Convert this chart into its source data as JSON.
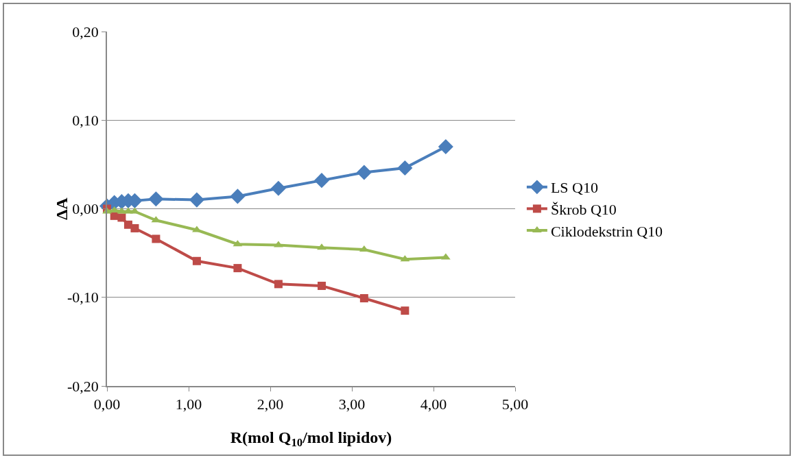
{
  "chart_data": {
    "type": "line",
    "xlabel": "R(mol Q$_{10}$/mol lipidov)",
    "ylabel": "ΔA",
    "x": [
      0,
      0.09,
      0.18,
      0.26,
      0.34,
      0.6,
      1.1,
      1.6,
      2.1,
      2.63,
      3.15,
      3.65,
      4.15
    ],
    "series": [
      {
        "name": "LS Q10",
        "color": "#4a7ebb",
        "marker": "diamond",
        "values": [
          0.003,
          0.007,
          0.008,
          0.009,
          0.009,
          0.011,
          0.01,
          0.014,
          0.023,
          0.032,
          0.041,
          0.046,
          0.07
        ]
      },
      {
        "name": "Škrob Q10",
        "color": "#be4b48",
        "marker": "square",
        "values": [
          0,
          -0.008,
          -0.01,
          -0.018,
          -0.022,
          -0.034,
          -0.059,
          -0.067,
          -0.085,
          -0.087,
          -0.101,
          -0.115,
          null
        ]
      },
      {
        "name": "Ciklodekstrin Q10",
        "color": "#98b954",
        "marker": "triangle",
        "values": [
          -0.003,
          -0.002,
          -0.003,
          -0.003,
          -0.003,
          -0.013,
          -0.024,
          -0.04,
          -0.041,
          -0.044,
          -0.046,
          -0.057,
          -0.055
        ]
      }
    ],
    "xlim": [
      0,
      5
    ],
    "xticks": [
      {
        "value": 0,
        "label": "0,00"
      },
      {
        "value": 1,
        "label": "1,00"
      },
      {
        "value": 2,
        "label": "2,00"
      },
      {
        "value": 3,
        "label": "3,00"
      },
      {
        "value": 4,
        "label": "4,00"
      },
      {
        "value": 5,
        "label": "5,00"
      }
    ],
    "ylim": [
      -0.2,
      0.2
    ],
    "yticks": [
      {
        "value": -0.2,
        "label": "-0,20"
      },
      {
        "value": -0.1,
        "label": "-0,10"
      },
      {
        "value": 0,
        "label": "0,00"
      },
      {
        "value": 0.1,
        "label": "0,10"
      },
      {
        "value": 0.2,
        "label": "0,20"
      }
    ],
    "grid": "y",
    "legend": "right",
    "line_style": "solid"
  }
}
